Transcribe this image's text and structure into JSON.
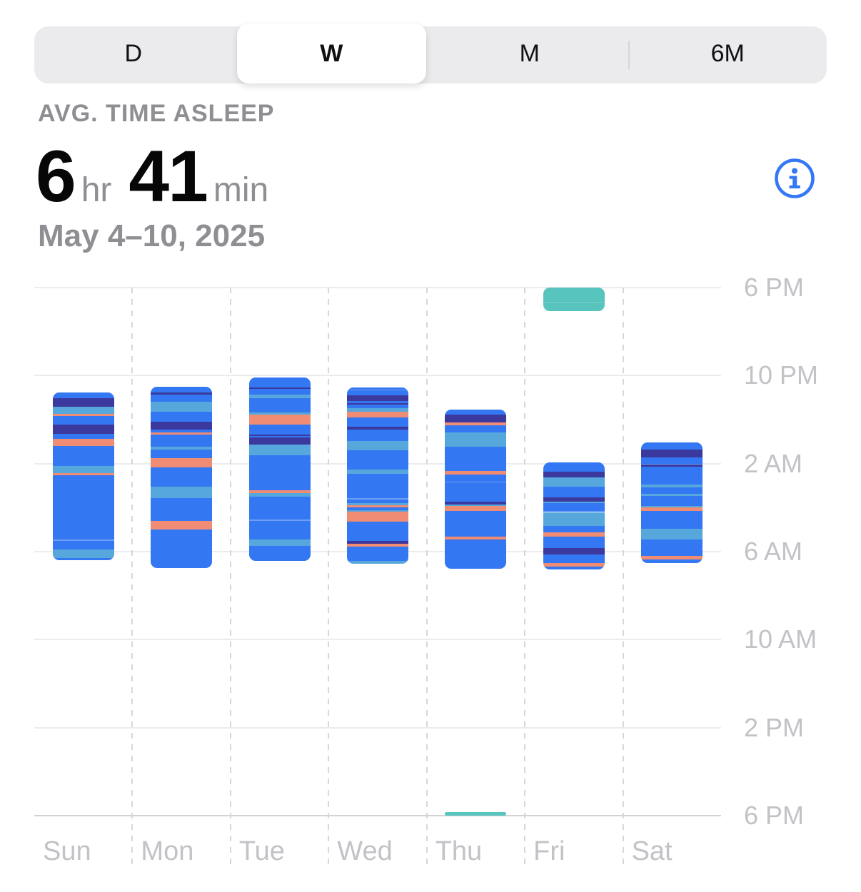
{
  "segmented_control": {
    "options": [
      {
        "label": "D",
        "selected": false
      },
      {
        "label": "W",
        "selected": true
      },
      {
        "label": "M",
        "selected": false
      },
      {
        "label": "6M",
        "selected": false
      }
    ]
  },
  "summary": {
    "label": "AVG. TIME ASLEEP",
    "value_parts": [
      {
        "text": "6",
        "kind": "number"
      },
      {
        "text": "hr",
        "kind": "unit"
      },
      {
        "text": "41",
        "kind": "number"
      },
      {
        "text": "min",
        "kind": "unit"
      }
    ],
    "date_range": "May 4–10, 2025"
  },
  "info_icon": {
    "name": "info-circle-icon",
    "color": "#3478F6"
  },
  "colors": {
    "accent_blue": "#3478F6",
    "secondary_text": "#8e8e93",
    "axis_text": "#c2c2c7",
    "segmented_bg": "#ebebed"
  },
  "chart_data": {
    "type": "bar",
    "subtype": "sleep-stages-time-ranges",
    "title": "Sleep stages by day, May 4–10, 2025",
    "day_starts_at": "18:00",
    "hours_span": 24,
    "y_axis": {
      "tick_labels": [
        "6 PM",
        "10 PM",
        "2 AM",
        "6 AM",
        "10 AM",
        "2 PM",
        "6 PM"
      ],
      "hours_per_division": 4
    },
    "categories": [
      "Sun",
      "Mon",
      "Tue",
      "Wed",
      "Thu",
      "Fri",
      "Sat"
    ],
    "stages": {
      "awake": "#F08C74",
      "rem": "#56A8DC",
      "core": "#3377F2",
      "core_light": "#6FA0F5",
      "deep": "#3B399E",
      "nap": "#57C4BE",
      "nap_light": "#79D0CA"
    },
    "segment_schema": [
      "stage",
      "start",
      "end"
    ],
    "days": [
      {
        "day": "Sun",
        "segments": [
          [
            "core",
            "22:46",
            "23:02"
          ],
          [
            "deep",
            "23:02",
            "23:25"
          ],
          [
            "rem",
            "23:25",
            "23:44"
          ],
          [
            "awake",
            "23:44",
            "23:50"
          ],
          [
            "core",
            "23:50",
            "00:14"
          ],
          [
            "deep",
            "00:14",
            "00:39"
          ],
          [
            "core",
            "00:39",
            "00:53"
          ],
          [
            "awake",
            "00:53",
            "01:12"
          ],
          [
            "core",
            "01:12",
            "02:06"
          ],
          [
            "rem",
            "02:06",
            "02:26"
          ],
          [
            "awake",
            "02:26",
            "02:32"
          ],
          [
            "core",
            "02:32",
            "05:27"
          ],
          [
            "core_light",
            "05:27",
            "05:31"
          ],
          [
            "core",
            "05:31",
            "05:54"
          ],
          [
            "rem",
            "05:54",
            "06:17"
          ],
          [
            "core",
            "06:17",
            "06:23"
          ]
        ]
      },
      {
        "day": "Mon",
        "segments": [
          [
            "core",
            "22:30",
            "22:46"
          ],
          [
            "deep",
            "22:46",
            "22:52"
          ],
          [
            "core",
            "22:52",
            "23:12"
          ],
          [
            "rem",
            "23:12",
            "23:38"
          ],
          [
            "core",
            "23:38",
            "00:06"
          ],
          [
            "deep",
            "00:06",
            "00:27"
          ],
          [
            "core",
            "00:27",
            "00:35"
          ],
          [
            "awake",
            "00:35",
            "00:41"
          ],
          [
            "core",
            "00:41",
            "01:14"
          ],
          [
            "rem",
            "01:14",
            "01:22"
          ],
          [
            "core",
            "01:22",
            "01:46"
          ],
          [
            "awake",
            "01:46",
            "02:10"
          ],
          [
            "core",
            "02:10",
            "03:02"
          ],
          [
            "rem",
            "03:02",
            "03:35"
          ],
          [
            "core",
            "03:35",
            "04:36"
          ],
          [
            "awake",
            "04:36",
            "04:59"
          ],
          [
            "core",
            "04:59",
            "06:45"
          ]
        ]
      },
      {
        "day": "Tue",
        "segments": [
          [
            "core",
            "22:06",
            "22:33"
          ],
          [
            "deep",
            "22:33",
            "22:36"
          ],
          [
            "core",
            "22:36",
            "22:51"
          ],
          [
            "rem",
            "22:51",
            "23:01"
          ],
          [
            "core",
            "23:01",
            "23:41"
          ],
          [
            "rem",
            "23:41",
            "23:46"
          ],
          [
            "awake",
            "23:46",
            "00:14"
          ],
          [
            "core",
            "00:14",
            "00:40"
          ],
          [
            "deep",
            "00:40",
            "00:45"
          ],
          [
            "core",
            "00:45",
            "00:49"
          ],
          [
            "deep",
            "00:49",
            "01:09"
          ],
          [
            "rem",
            "01:09",
            "01:38"
          ],
          [
            "core",
            "01:38",
            "03:12"
          ],
          [
            "awake",
            "03:12",
            "03:20"
          ],
          [
            "rem",
            "03:20",
            "03:30"
          ],
          [
            "core",
            "03:30",
            "04:33"
          ],
          [
            "core_light",
            "04:33",
            "04:36"
          ],
          [
            "core",
            "04:36",
            "05:27"
          ],
          [
            "rem",
            "05:27",
            "05:44"
          ],
          [
            "core",
            "05:44",
            "06:25"
          ]
        ]
      },
      {
        "day": "Wed",
        "segments": [
          [
            "core",
            "22:33",
            "22:38"
          ],
          [
            "core_light",
            "22:38",
            "22:40"
          ],
          [
            "core",
            "22:40",
            "22:54"
          ],
          [
            "deep",
            "22:54",
            "23:10"
          ],
          [
            "core",
            "23:10",
            "23:15"
          ],
          [
            "deep",
            "23:15",
            "23:20"
          ],
          [
            "core",
            "23:20",
            "23:29"
          ],
          [
            "rem",
            "23:29",
            "23:38"
          ],
          [
            "awake",
            "23:38",
            "23:55"
          ],
          [
            "core",
            "23:55",
            "00:19"
          ],
          [
            "deep",
            "00:19",
            "00:28"
          ],
          [
            "core",
            "00:28",
            "00:58"
          ],
          [
            "rem",
            "00:58",
            "01:24"
          ],
          [
            "core",
            "01:24",
            "02:16"
          ],
          [
            "rem",
            "02:16",
            "02:27"
          ],
          [
            "core",
            "02:27",
            "03:35"
          ],
          [
            "core_light",
            "03:35",
            "03:38"
          ],
          [
            "core",
            "03:38",
            "03:48"
          ],
          [
            "rem",
            "03:48",
            "03:53"
          ],
          [
            "awake",
            "03:53",
            "03:59"
          ],
          [
            "core",
            "03:59",
            "04:07"
          ],
          [
            "rem",
            "04:07",
            "04:12"
          ],
          [
            "awake",
            "04:12",
            "04:38"
          ],
          [
            "core",
            "04:38",
            "05:31"
          ],
          [
            "deep",
            "05:31",
            "05:39"
          ],
          [
            "awake",
            "05:39",
            "05:46"
          ],
          [
            "core",
            "05:46",
            "06:25"
          ],
          [
            "rem",
            "06:25",
            "06:33"
          ]
        ]
      },
      {
        "day": "Thu",
        "segments": [
          [
            "core",
            "23:32",
            "23:46"
          ],
          [
            "deep",
            "23:46",
            "00:07"
          ],
          [
            "awake",
            "00:07",
            "00:16"
          ],
          [
            "core",
            "00:16",
            "00:36"
          ],
          [
            "rem",
            "00:36",
            "01:14"
          ],
          [
            "core",
            "01:14",
            "02:20"
          ],
          [
            "awake",
            "02:20",
            "02:30"
          ],
          [
            "core",
            "02:30",
            "02:49"
          ],
          [
            "core_light",
            "02:49",
            "02:52"
          ],
          [
            "core",
            "02:52",
            "03:44"
          ],
          [
            "deep",
            "03:44",
            "03:51"
          ],
          [
            "rem",
            "03:51",
            "03:56"
          ],
          [
            "awake",
            "03:56",
            "04:09"
          ],
          [
            "core",
            "04:09",
            "05:20"
          ],
          [
            "awake",
            "05:20",
            "05:27"
          ],
          [
            "core",
            "05:27",
            "06:46"
          ],
          [
            "nap",
            "17:50",
            "18:00"
          ]
        ]
      },
      {
        "day": "Fri",
        "segments": [
          [
            "nap",
            "18:00",
            "18:39"
          ],
          [
            "nap_light",
            "18:39",
            "18:41"
          ],
          [
            "nap",
            "18:41",
            "19:04"
          ],
          [
            "core",
            "01:57",
            "02:22"
          ],
          [
            "deep",
            "02:22",
            "02:38"
          ],
          [
            "rem",
            "02:38",
            "03:02"
          ],
          [
            "core",
            "03:02",
            "03:32"
          ],
          [
            "deep",
            "03:32",
            "03:43"
          ],
          [
            "rem",
            "03:43",
            "03:48"
          ],
          [
            "core",
            "03:48",
            "04:12"
          ],
          [
            "rem",
            "04:12",
            "04:50"
          ],
          [
            "core",
            "04:50",
            "05:07"
          ],
          [
            "awake",
            "05:07",
            "05:20"
          ],
          [
            "core",
            "05:20",
            "05:51"
          ],
          [
            "deep",
            "05:51",
            "06:08"
          ],
          [
            "core",
            "06:08",
            "06:32"
          ],
          [
            "awake",
            "06:32",
            "06:40"
          ],
          [
            "core",
            "06:40",
            "06:49"
          ]
        ]
      },
      {
        "day": "Sat",
        "segments": [
          [
            "core",
            "01:02",
            "01:22"
          ],
          [
            "deep",
            "01:22",
            "01:44"
          ],
          [
            "core",
            "01:44",
            "02:00"
          ],
          [
            "core_light",
            "02:00",
            "02:02"
          ],
          [
            "deep",
            "02:02",
            "02:08"
          ],
          [
            "core",
            "02:08",
            "02:58"
          ],
          [
            "rem",
            "02:58",
            "03:04"
          ],
          [
            "core",
            "03:04",
            "03:22"
          ],
          [
            "rem",
            "03:22",
            "03:28"
          ],
          [
            "core",
            "03:28",
            "03:56"
          ],
          [
            "rem",
            "03:56",
            "04:00"
          ],
          [
            "awake",
            "04:00",
            "04:09"
          ],
          [
            "core",
            "04:09",
            "04:57"
          ],
          [
            "rem",
            "04:57",
            "05:27"
          ],
          [
            "core",
            "05:27",
            "06:12"
          ],
          [
            "awake",
            "06:12",
            "06:21"
          ],
          [
            "core",
            "06:21",
            "06:31"
          ]
        ]
      }
    ]
  }
}
